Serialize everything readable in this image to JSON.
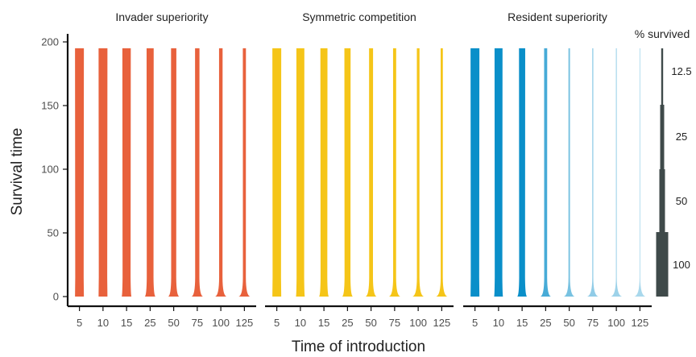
{
  "chart_data": {
    "type": "violin",
    "xlabel": "Time of introduction",
    "ylabel": "Survival time",
    "ylim": [
      0,
      200
    ],
    "yticks": [
      0,
      50,
      100,
      150,
      200
    ],
    "categories": [
      "5",
      "10",
      "15",
      "25",
      "50",
      "75",
      "100",
      "125"
    ],
    "panels": [
      {
        "title": "Invader superiority",
        "color": "#E8613C",
        "top_width": [
          1.0,
          1.0,
          0.95,
          0.8,
          0.6,
          0.5,
          0.4,
          0.35
        ],
        "base_width": [
          1.0,
          1.0,
          1.1,
          1.2,
          1.25,
          1.3,
          1.3,
          1.3
        ],
        "opacity": [
          1,
          1,
          1,
          1,
          1,
          1,
          1,
          1
        ]
      },
      {
        "title": "Symmetric competition",
        "color": "#F5C518",
        "top_width": [
          1.0,
          0.9,
          0.8,
          0.7,
          0.45,
          0.35,
          0.3,
          0.25
        ],
        "base_width": [
          1.0,
          1.0,
          1.1,
          1.2,
          1.25,
          1.3,
          1.3,
          1.3
        ],
        "opacity": [
          1,
          1,
          1,
          1,
          1,
          1,
          1,
          1
        ]
      },
      {
        "title": "Resident superiority",
        "color": "#0A8FC9",
        "top_width": [
          1.0,
          0.9,
          0.7,
          0.35,
          0.18,
          0.12,
          0.1,
          0.08
        ],
        "base_width": [
          1.0,
          1.0,
          1.1,
          1.2,
          1.25,
          1.3,
          1.3,
          1.3
        ],
        "opacity": [
          1,
          1,
          1,
          0.75,
          0.55,
          0.45,
          0.4,
          0.35
        ]
      }
    ],
    "legend": {
      "title": "% survived",
      "labels": [
        "12.5",
        "25",
        "50",
        "100"
      ],
      "color": "#3F4A4A",
      "placement": "right"
    }
  }
}
